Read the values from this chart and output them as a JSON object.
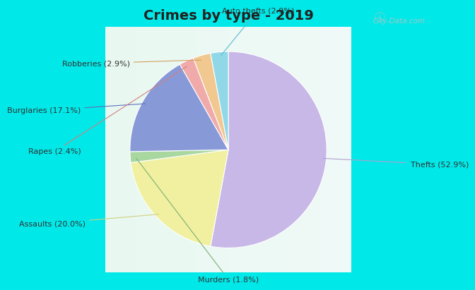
{
  "title": "Crimes by type - 2019",
  "slices": [
    {
      "label": "Thefts (52.9%)",
      "value": 52.9,
      "color": "#c8b8e8"
    },
    {
      "label": "Assaults (20.0%)",
      "value": 20.0,
      "color": "#f0f0a0"
    },
    {
      "label": "Murders (1.8%)",
      "value": 1.8,
      "color": "#a8d8a0"
    },
    {
      "label": "Burglaries (17.1%)",
      "value": 17.1,
      "color": "#8899d8"
    },
    {
      "label": "Rapes (2.4%)",
      "value": 2.4,
      "color": "#f0aaaa"
    },
    {
      "label": "Robberies (2.9%)",
      "value": 2.9,
      "color": "#f0c890"
    },
    {
      "label": "Auto thefts (2.9%)",
      "value": 2.9,
      "color": "#90d8e8"
    }
  ],
  "startangle": 90,
  "counterclock": false,
  "title_fontsize": 14,
  "title_color": "#222222",
  "label_fontsize": 8,
  "label_color": "#333333",
  "border_color": "#00e8e8",
  "bg_gradient_top": "#c8f0e0",
  "bg_gradient_bottom": "#e0f8f0",
  "watermark_text": "City-Data.com",
  "watermark_color": "#a0c8c8",
  "border_thickness": 8
}
